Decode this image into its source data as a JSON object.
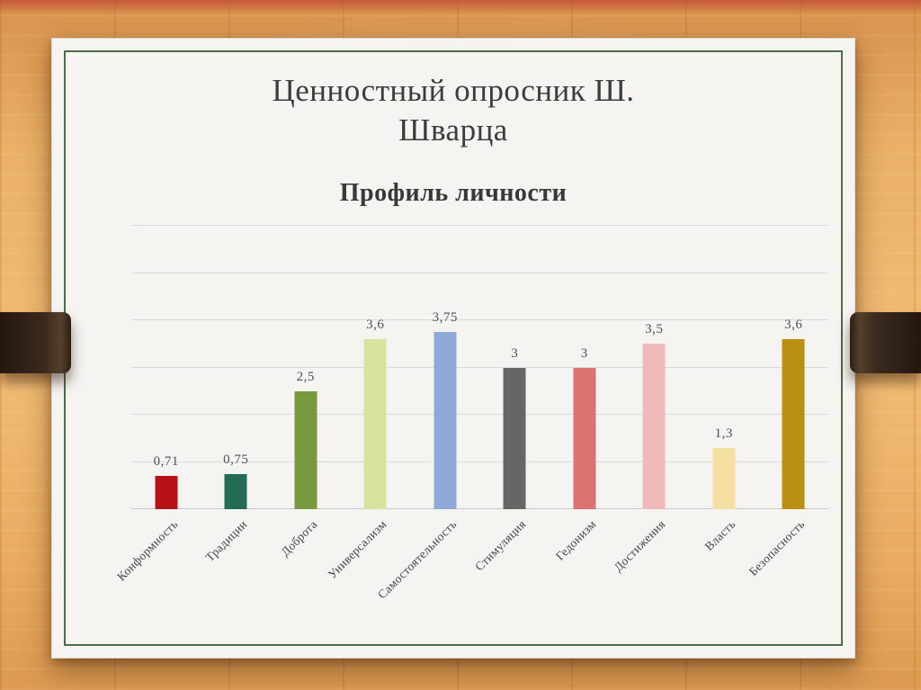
{
  "slide": {
    "title": "Ценностный опросник Ш.\nШварца",
    "chart_title": "Профиль личности"
  },
  "chart_data": {
    "type": "bar",
    "title": "Профиль личности",
    "categories": [
      "Конформность",
      "Традиции",
      "Доброта",
      "Универсализм",
      "Самостоятельность",
      "Стимуляция",
      "Гедонизм",
      "Достижения",
      "Власть",
      "Безопасность"
    ],
    "values": [
      0.71,
      0.75,
      2.5,
      3.6,
      3.75,
      3,
      3,
      3.5,
      1.3,
      3.6
    ],
    "value_labels": [
      "0,71",
      "0,75",
      "2,5",
      "3,6",
      "3,75",
      "3",
      "3",
      "3,5",
      "1,3",
      "3,6"
    ],
    "bar_colors": [
      "#b61217",
      "#226b55",
      "#78993e",
      "#d9e39d",
      "#8fa9d8",
      "#666666",
      "#dd7272",
      "#f0b9bb",
      "#f6dfa3",
      "#bb8f12"
    ],
    "xlabel": "",
    "ylabel": "",
    "ylim": [
      0,
      6
    ],
    "gridlines": [
      0,
      1,
      2,
      3,
      4,
      5,
      6
    ],
    "grid": "horizontal",
    "legend": "none",
    "category_label_rotation_deg": -45
  },
  "colors": {
    "paper": "#f5f4f1",
    "frame_green": "#4e6a47",
    "wood": "#eab167",
    "strap_brown": "#312216",
    "grid": "#dbdbdb",
    "text": "#3c3c3c"
  }
}
